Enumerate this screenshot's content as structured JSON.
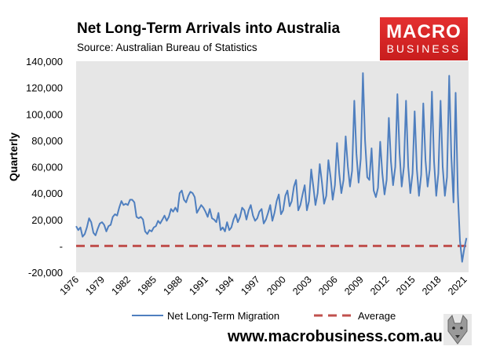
{
  "title": "Net Long-Term Arrivals into Australia",
  "subtitle": "Source: Australian Bureau of Statistics",
  "logo": {
    "line1": "MACRO",
    "line2": "BUSINESS"
  },
  "footer": {
    "url": "www.macrobusiness.com.au"
  },
  "colors": {
    "series": "#4f7fbf",
    "average": "#c0504d",
    "plot_bg": "#e6e6e6",
    "logo": "#e02a2a"
  },
  "chart_data": {
    "type": "line",
    "title": "Net Long-Term Arrivals into Australia",
    "ylabel": "Quarterly",
    "xlabel": "",
    "ylim": [
      -20000,
      140000
    ],
    "yticks": [
      -20000,
      0,
      20000,
      40000,
      60000,
      80000,
      100000,
      120000,
      140000
    ],
    "ytick_labels": [
      "-20,000",
      "-",
      "20,000",
      "40,000",
      "60,000",
      "80,000",
      "100,000",
      "120,000",
      "140,000"
    ],
    "xlim": [
      1976,
      2021.5
    ],
    "xticks": [
      1976,
      1979,
      1982,
      1985,
      1988,
      1991,
      1994,
      1997,
      2000,
      2003,
      2006,
      2009,
      2012,
      2015,
      2018,
      2021
    ],
    "xtick_labels": [
      "1976",
      "1979",
      "1982",
      "1985",
      "1988",
      "1991",
      "1994",
      "1997",
      "2000",
      "2003",
      "2006",
      "2009",
      "2012",
      "2015",
      "2018",
      "2021"
    ],
    "grid": false,
    "legend": "bottom",
    "series": [
      {
        "name": "Net Long-Term Migration",
        "style": "solid",
        "points": [
          [
            1976.0,
            15000
          ],
          [
            1976.25,
            12000
          ],
          [
            1976.5,
            14000
          ],
          [
            1976.75,
            7000
          ],
          [
            1977.0,
            9000
          ],
          [
            1977.25,
            14000
          ],
          [
            1977.5,
            21000
          ],
          [
            1977.75,
            18000
          ],
          [
            1978.0,
            10000
          ],
          [
            1978.25,
            8000
          ],
          [
            1978.5,
            13000
          ],
          [
            1978.75,
            17000
          ],
          [
            1979.0,
            18000
          ],
          [
            1979.25,
            16000
          ],
          [
            1979.5,
            11000
          ],
          [
            1979.75,
            15000
          ],
          [
            1980.0,
            16000
          ],
          [
            1980.25,
            22000
          ],
          [
            1980.5,
            24000
          ],
          [
            1980.75,
            23000
          ],
          [
            1981.0,
            29000
          ],
          [
            1981.25,
            34000
          ],
          [
            1981.5,
            31000
          ],
          [
            1981.75,
            32000
          ],
          [
            1982.0,
            31000
          ],
          [
            1982.25,
            35000
          ],
          [
            1982.5,
            35000
          ],
          [
            1982.75,
            33000
          ],
          [
            1983.0,
            22000
          ],
          [
            1983.25,
            21000
          ],
          [
            1983.5,
            22000
          ],
          [
            1983.75,
            20000
          ],
          [
            1984.0,
            11000
          ],
          [
            1984.25,
            9000
          ],
          [
            1984.5,
            12000
          ],
          [
            1984.75,
            11000
          ],
          [
            1985.0,
            14000
          ],
          [
            1985.25,
            15000
          ],
          [
            1985.5,
            19000
          ],
          [
            1985.75,
            17000
          ],
          [
            1986.0,
            20000
          ],
          [
            1986.25,
            23000
          ],
          [
            1986.5,
            19000
          ],
          [
            1986.75,
            22000
          ],
          [
            1987.0,
            28000
          ],
          [
            1987.25,
            26000
          ],
          [
            1987.5,
            29000
          ],
          [
            1987.75,
            26000
          ],
          [
            1988.0,
            40000
          ],
          [
            1988.25,
            42000
          ],
          [
            1988.5,
            35000
          ],
          [
            1988.75,
            33000
          ],
          [
            1989.0,
            38000
          ],
          [
            1989.25,
            41000
          ],
          [
            1989.5,
            40000
          ],
          [
            1989.75,
            37000
          ],
          [
            1990.0,
            25000
          ],
          [
            1990.25,
            28000
          ],
          [
            1990.5,
            31000
          ],
          [
            1990.75,
            29000
          ],
          [
            1991.0,
            26000
          ],
          [
            1991.25,
            22000
          ],
          [
            1991.5,
            28000
          ],
          [
            1991.75,
            21000
          ],
          [
            1992.0,
            20000
          ],
          [
            1992.25,
            18000
          ],
          [
            1992.5,
            25000
          ],
          [
            1992.75,
            12000
          ],
          [
            1993.0,
            14000
          ],
          [
            1993.25,
            11000
          ],
          [
            1993.5,
            18000
          ],
          [
            1993.75,
            12000
          ],
          [
            1994.0,
            14000
          ],
          [
            1994.25,
            20000
          ],
          [
            1994.5,
            24000
          ],
          [
            1994.75,
            18000
          ],
          [
            1995.0,
            22000
          ],
          [
            1995.25,
            29000
          ],
          [
            1995.5,
            27000
          ],
          [
            1995.75,
            20000
          ],
          [
            1996.0,
            27000
          ],
          [
            1996.25,
            31000
          ],
          [
            1996.5,
            23000
          ],
          [
            1996.75,
            19000
          ],
          [
            1997.0,
            21000
          ],
          [
            1997.25,
            26000
          ],
          [
            1997.5,
            28000
          ],
          [
            1997.75,
            17000
          ],
          [
            1998.0,
            20000
          ],
          [
            1998.25,
            25000
          ],
          [
            1998.5,
            31000
          ],
          [
            1998.75,
            19000
          ],
          [
            1999.0,
            25000
          ],
          [
            1999.25,
            34000
          ],
          [
            1999.5,
            39000
          ],
          [
            1999.75,
            24000
          ],
          [
            2000.0,
            27000
          ],
          [
            2000.25,
            38000
          ],
          [
            2000.5,
            42000
          ],
          [
            2000.75,
            30000
          ],
          [
            2001.0,
            34000
          ],
          [
            2001.25,
            45000
          ],
          [
            2001.5,
            50000
          ],
          [
            2001.75,
            27000
          ],
          [
            2002.0,
            31000
          ],
          [
            2002.25,
            39000
          ],
          [
            2002.5,
            46000
          ],
          [
            2002.75,
            27000
          ],
          [
            2003.0,
            34000
          ],
          [
            2003.25,
            58000
          ],
          [
            2003.5,
            45000
          ],
          [
            2003.75,
            31000
          ],
          [
            2004.0,
            40000
          ],
          [
            2004.25,
            62000
          ],
          [
            2004.5,
            48000
          ],
          [
            2004.75,
            32000
          ],
          [
            2005.0,
            38000
          ],
          [
            2005.25,
            65000
          ],
          [
            2005.5,
            52000
          ],
          [
            2005.75,
            35000
          ],
          [
            2006.0,
            46000
          ],
          [
            2006.25,
            78000
          ],
          [
            2006.5,
            55000
          ],
          [
            2006.75,
            40000
          ],
          [
            2007.0,
            50000
          ],
          [
            2007.25,
            83000
          ],
          [
            2007.5,
            60000
          ],
          [
            2007.75,
            45000
          ],
          [
            2008.0,
            57000
          ],
          [
            2008.25,
            110000
          ],
          [
            2008.5,
            70000
          ],
          [
            2008.75,
            48000
          ],
          [
            2009.0,
            66000
          ],
          [
            2009.25,
            131000
          ],
          [
            2009.5,
            80000
          ],
          [
            2009.75,
            52000
          ],
          [
            2010.0,
            50000
          ],
          [
            2010.25,
            74000
          ],
          [
            2010.5,
            42000
          ],
          [
            2010.75,
            37000
          ],
          [
            2011.0,
            44000
          ],
          [
            2011.25,
            79000
          ],
          [
            2011.5,
            55000
          ],
          [
            2011.75,
            39000
          ],
          [
            2012.0,
            50000
          ],
          [
            2012.25,
            97000
          ],
          [
            2012.5,
            64000
          ],
          [
            2012.75,
            46000
          ],
          [
            2013.0,
            60000
          ],
          [
            2013.25,
            115000
          ],
          [
            2013.5,
            70000
          ],
          [
            2013.75,
            45000
          ],
          [
            2014.0,
            60000
          ],
          [
            2014.25,
            110000
          ],
          [
            2014.5,
            60000
          ],
          [
            2014.75,
            40000
          ],
          [
            2015.0,
            55000
          ],
          [
            2015.25,
            102000
          ],
          [
            2015.5,
            58000
          ],
          [
            2015.75,
            38000
          ],
          [
            2016.0,
            54000
          ],
          [
            2016.25,
            108000
          ],
          [
            2016.5,
            65000
          ],
          [
            2016.75,
            45000
          ],
          [
            2017.0,
            58000
          ],
          [
            2017.25,
            117000
          ],
          [
            2017.5,
            64000
          ],
          [
            2017.75,
            38000
          ],
          [
            2018.0,
            55000
          ],
          [
            2018.25,
            110000
          ],
          [
            2018.5,
            60000
          ],
          [
            2018.75,
            38000
          ],
          [
            2019.0,
            52000
          ],
          [
            2019.25,
            129000
          ],
          [
            2019.5,
            68000
          ],
          [
            2019.75,
            33000
          ],
          [
            2020.0,
            116000
          ],
          [
            2020.25,
            40000
          ],
          [
            2020.5,
            4000
          ],
          [
            2020.75,
            -12000
          ],
          [
            2021.0,
            -2000
          ],
          [
            2021.25,
            6000
          ]
        ]
      },
      {
        "name": "Average",
        "style": "dashed",
        "points": [
          [
            1976.0,
            0
          ],
          [
            2021.25,
            0
          ]
        ]
      }
    ]
  }
}
